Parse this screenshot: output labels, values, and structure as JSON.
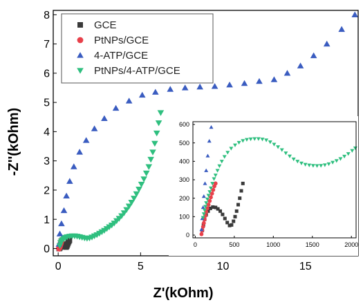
{
  "chart_data": [
    {
      "type": "scatter",
      "title": "",
      "xlabel": "Z'(kOhm)",
      "ylabel": "-Z''(kOhm)",
      "xlim": [
        -0.3,
        18.2
      ],
      "ylim": [
        -0.25,
        8.15
      ],
      "x_ticks": [
        0,
        5,
        10,
        15
      ],
      "y_ticks": [
        0,
        1,
        2,
        3,
        4,
        5,
        6,
        7,
        8
      ],
      "legend_position": "top-left",
      "grid": false,
      "series": [
        {
          "name": "GCE",
          "color": "#3a3a3a",
          "marker": "square",
          "points": [
            [
              0.06,
              0.0
            ],
            [
              0.1,
              0.02
            ],
            [
              0.15,
              0.06
            ],
            [
              0.2,
              0.1
            ],
            [
              0.25,
              0.14
            ],
            [
              0.3,
              0.15
            ],
            [
              0.35,
              0.14
            ],
            [
              0.4,
              0.11
            ],
            [
              0.45,
              0.07
            ],
            [
              0.48,
              0.05
            ],
            [
              0.52,
              0.08
            ],
            [
              0.56,
              0.13
            ],
            [
              0.6,
              0.19
            ],
            [
              0.64,
              0.24
            ],
            [
              0.68,
              0.28
            ]
          ]
        },
        {
          "name": "PtNPs/GCE",
          "color": "#e8404a",
          "marker": "circle",
          "points": [
            [
              0.05,
              0.0
            ],
            [
              0.07,
              0.03
            ],
            [
              0.09,
              0.06
            ],
            [
              0.11,
              0.1
            ],
            [
              0.13,
              0.14
            ],
            [
              0.15,
              0.18
            ],
            [
              0.17,
              0.22
            ],
            [
              0.19,
              0.26
            ],
            [
              0.21,
              0.29
            ]
          ]
        },
        {
          "name": "4-ATP/GCE",
          "color": "#3a5cc0",
          "marker": "triangle-up",
          "points": [
            [
              0.05,
              0.15
            ],
            [
              0.1,
              0.5
            ],
            [
              0.2,
              0.85
            ],
            [
              0.35,
              1.3
            ],
            [
              0.5,
              1.8
            ],
            [
              0.7,
              2.3
            ],
            [
              0.95,
              2.8
            ],
            [
              1.3,
              3.3
            ],
            [
              1.7,
              3.7
            ],
            [
              2.2,
              4.1
            ],
            [
              2.8,
              4.45
            ],
            [
              3.5,
              4.8
            ],
            [
              4.3,
              5.05
            ],
            [
              5.1,
              5.25
            ],
            [
              5.9,
              5.35
            ],
            [
              6.8,
              5.45
            ],
            [
              7.7,
              5.5
            ],
            [
              8.6,
              5.53
            ],
            [
              9.5,
              5.55
            ],
            [
              10.4,
              5.6
            ],
            [
              11.3,
              5.65
            ],
            [
              12.2,
              5.72
            ],
            [
              13.1,
              5.78
            ],
            [
              13.9,
              6.0
            ],
            [
              14.7,
              6.25
            ],
            [
              15.5,
              6.6
            ],
            [
              16.3,
              7.0
            ],
            [
              17.2,
              7.5
            ],
            [
              18.0,
              8.0
            ]
          ]
        },
        {
          "name": "PtNPs/4-ATP/GCE",
          "color": "#2fbf7f",
          "marker": "triangle-down",
          "points": [
            [
              0.1,
              0.1
            ],
            [
              0.15,
              0.2
            ],
            [
              0.2,
              0.26
            ],
            [
              0.27,
              0.3
            ],
            [
              0.35,
              0.34
            ],
            [
              0.45,
              0.38
            ],
            [
              0.55,
              0.4
            ],
            [
              0.7,
              0.42
            ],
            [
              0.85,
              0.43
            ],
            [
              1.0,
              0.43
            ],
            [
              1.15,
              0.42
            ],
            [
              1.3,
              0.4
            ],
            [
              1.45,
              0.38
            ],
            [
              1.6,
              0.36
            ],
            [
              1.75,
              0.35
            ],
            [
              1.9,
              0.36
            ],
            [
              2.05,
              0.39
            ],
            [
              2.2,
              0.43
            ],
            [
              2.35,
              0.47
            ],
            [
              2.5,
              0.52
            ],
            [
              2.65,
              0.57
            ],
            [
              2.8,
              0.62
            ],
            [
              2.95,
              0.68
            ],
            [
              3.1,
              0.74
            ],
            [
              3.25,
              0.8
            ],
            [
              3.4,
              0.87
            ],
            [
              3.55,
              0.95
            ],
            [
              3.7,
              1.03
            ],
            [
              3.85,
              1.12
            ],
            [
              4.0,
              1.22
            ],
            [
              4.15,
              1.33
            ],
            [
              4.3,
              1.45
            ],
            [
              4.45,
              1.58
            ],
            [
              4.6,
              1.72
            ],
            [
              4.75,
              1.87
            ],
            [
              4.9,
              2.03
            ],
            [
              5.05,
              2.2
            ],
            [
              5.2,
              2.38
            ],
            [
              5.35,
              2.58
            ],
            [
              5.5,
              2.8
            ],
            [
              5.62,
              3.05
            ],
            [
              5.74,
              3.3
            ],
            [
              5.86,
              3.6
            ],
            [
              5.98,
              3.95
            ],
            [
              6.1,
              4.3
            ],
            [
              6.22,
              4.65
            ]
          ]
        }
      ]
    },
    {
      "type": "scatter",
      "title": "",
      "xlabel": "",
      "ylabel": "",
      "xlim": [
        -30,
        2060
      ],
      "ylim": [
        -15,
        615
      ],
      "x_ticks": [
        0,
        500,
        1000,
        1500,
        2000
      ],
      "y_ticks": [
        0,
        100,
        200,
        300,
        400,
        500,
        600
      ],
      "grid": false,
      "series": [
        {
          "name": "GCE",
          "color": "#3a3a3a",
          "marker": "square",
          "points": [
            [
              90,
              25
            ],
            [
              105,
              55
            ],
            [
              120,
              85
            ],
            [
              140,
              110
            ],
            [
              165,
              130
            ],
            [
              195,
              145
            ],
            [
              225,
              152
            ],
            [
              260,
              150
            ],
            [
              290,
              142
            ],
            [
              320,
              130
            ],
            [
              350,
              112
            ],
            [
              380,
              90
            ],
            [
              410,
              68
            ],
            [
              440,
              52
            ],
            [
              465,
              55
            ],
            [
              490,
              75
            ],
            [
              510,
              100
            ],
            [
              530,
              130
            ],
            [
              550,
              165
            ],
            [
              570,
              200
            ],
            [
              590,
              240
            ],
            [
              610,
              280
            ]
          ]
        },
        {
          "name": "PtNPs/GCE",
          "color": "#e8404a",
          "marker": "circle",
          "points": [
            [
              80,
              5
            ],
            [
              90,
              25
            ],
            [
              100,
              45
            ],
            [
              110,
              65
            ],
            [
              120,
              85
            ],
            [
              130,
              105
            ],
            [
              140,
              125
            ],
            [
              155,
              145
            ],
            [
              170,
              165
            ],
            [
              185,
              185
            ],
            [
              200,
              205
            ],
            [
              215,
              225
            ],
            [
              230,
              245
            ],
            [
              245,
              265
            ],
            [
              260,
              280
            ]
          ]
        },
        {
          "name": "4-ATP/GCE",
          "color": "#3a5cc0",
          "marker": "triangle-up",
          "points": [
            [
              80,
              30
            ],
            [
              90,
              90
            ],
            [
              100,
              150
            ],
            [
              110,
              210
            ],
            [
              125,
              280
            ],
            [
              140,
              350
            ],
            [
              160,
              430
            ],
            [
              180,
              510
            ],
            [
              205,
              585
            ]
          ]
        },
        {
          "name": "PtNPs/4-ATP/GCE",
          "color": "#2fbf7f",
          "marker": "triangle-down",
          "points": [
            [
              100,
              95
            ],
            [
              110,
              115
            ],
            [
              120,
              135
            ],
            [
              130,
              155
            ],
            [
              140,
              175
            ],
            [
              155,
              195
            ],
            [
              170,
              215
            ],
            [
              185,
              235
            ],
            [
              200,
              255
            ],
            [
              220,
              280
            ],
            [
              240,
              305
            ],
            [
              260,
              325
            ],
            [
              285,
              350
            ],
            [
              310,
              375
            ],
            [
              340,
              400
            ],
            [
              375,
              425
            ],
            [
              415,
              448
            ],
            [
              460,
              470
            ],
            [
              510,
              488
            ],
            [
              560,
              502
            ],
            [
              610,
              512
            ],
            [
              660,
              518
            ],
            [
              710,
              521
            ],
            [
              760,
              522
            ],
            [
              810,
              522
            ],
            [
              860,
              520
            ],
            [
              910,
              515
            ],
            [
              960,
              505
            ],
            [
              1010,
              492
            ],
            [
              1060,
              478
            ],
            [
              1110,
              462
            ],
            [
              1160,
              445
            ],
            [
              1210,
              428
            ],
            [
              1260,
              412
            ],
            [
              1310,
              400
            ],
            [
              1360,
              390
            ],
            [
              1410,
              383
            ],
            [
              1460,
              379
            ],
            [
              1510,
              377
            ],
            [
              1560,
              376
            ],
            [
              1610,
              377
            ],
            [
              1660,
              380
            ],
            [
              1710,
              386
            ],
            [
              1760,
              394
            ],
            [
              1810,
              403
            ],
            [
              1860,
              414
            ],
            [
              1910,
              427
            ],
            [
              1960,
              441
            ],
            [
              2010,
              458
            ],
            [
              2050,
              472
            ]
          ]
        }
      ]
    }
  ]
}
